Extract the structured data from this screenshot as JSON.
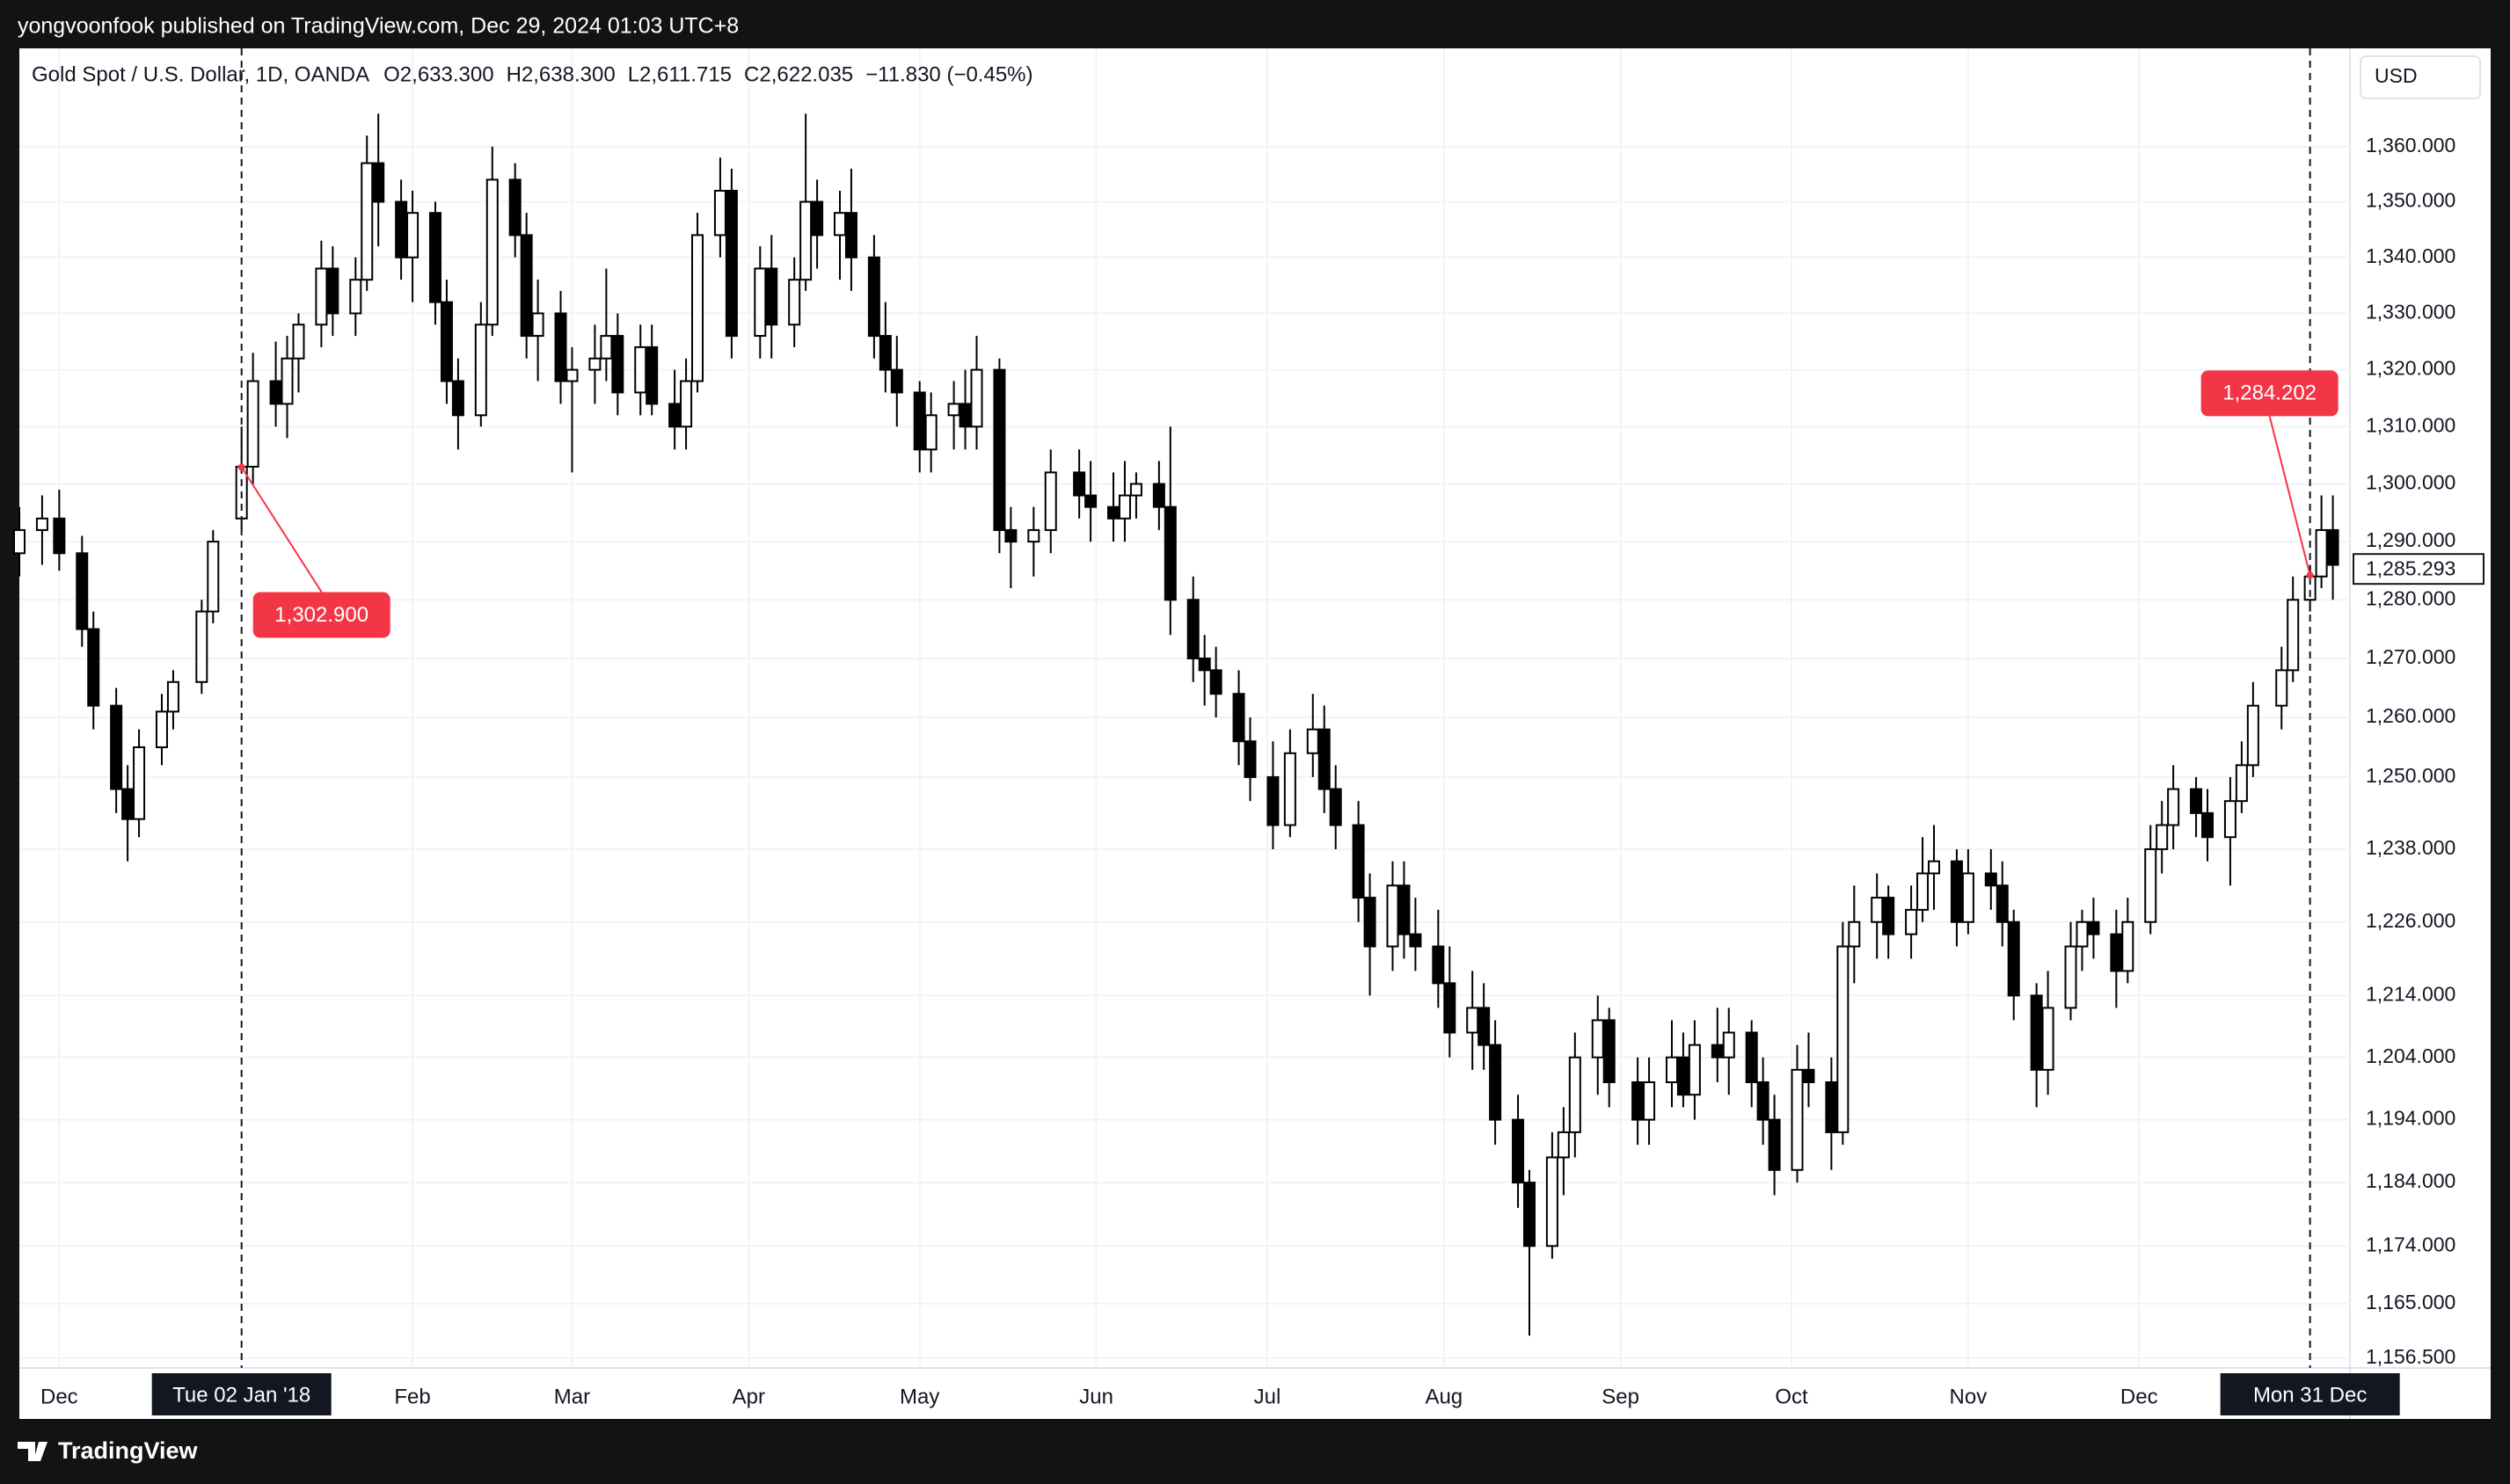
{
  "header": {
    "text": "yongvoonfook published on TradingView.com, Dec 29, 2024 01:03 UTC+8"
  },
  "footer": {
    "brand": "TradingView"
  },
  "chart_data": {
    "type": "candlestick",
    "title": "Gold Spot / U.S. Dollar, 1D, OANDA",
    "legend_values": [
      "O2,633.300",
      "H2,638.300",
      "L2,611.715",
      "C2,622.035",
      "−11.830 (−0.45%)"
    ],
    "currency": "USD",
    "log": true,
    "grid": true,
    "up_color": "#ffffff",
    "down_color": "#000000",
    "wick_color": "#000000",
    "xlim": [
      "2017-11-24",
      "2019-01-07"
    ],
    "ylim": [
      1155,
      1378
    ],
    "yticks": [
      {
        "value": 1360,
        "label": "1,360.000"
      },
      {
        "value": 1350,
        "label": "1,350.000"
      },
      {
        "value": 1340,
        "label": "1,340.000"
      },
      {
        "value": 1330,
        "label": "1,330.000"
      },
      {
        "value": 1320,
        "label": "1,320.000"
      },
      {
        "value": 1310,
        "label": "1,310.000"
      },
      {
        "value": 1300,
        "label": "1,300.000"
      },
      {
        "value": 1290,
        "label": "1,290.000"
      },
      {
        "value": 1280,
        "label": "1,280.000"
      },
      {
        "value": 1270,
        "label": "1,270.000"
      },
      {
        "value": 1260,
        "label": "1,260.000"
      },
      {
        "value": 1250,
        "label": "1,250.000"
      },
      {
        "value": 1238,
        "label": "1,238.000"
      },
      {
        "value": 1226,
        "label": "1,226.000"
      },
      {
        "value": 1214,
        "label": "1,214.000"
      },
      {
        "value": 1204,
        "label": "1,204.000"
      },
      {
        "value": 1194,
        "label": "1,194.000"
      },
      {
        "value": 1184,
        "label": "1,184.000"
      },
      {
        "value": 1174,
        "label": "1,174.000"
      },
      {
        "value": 1165,
        "label": "1,165.000"
      },
      {
        "value": 1156.5,
        "label": "1,156.500"
      }
    ],
    "xticks": [
      {
        "value": "2017-12-01",
        "label": "Dec"
      },
      {
        "value": "2018-02-01",
        "label": "Feb"
      },
      {
        "value": "2018-03-01",
        "label": "Mar"
      },
      {
        "value": "2018-04-01",
        "label": "Apr"
      },
      {
        "value": "2018-05-01",
        "label": "May"
      },
      {
        "value": "2018-06-01",
        "label": "Jun"
      },
      {
        "value": "2018-07-01",
        "label": "Jul"
      },
      {
        "value": "2018-08-01",
        "label": "Aug"
      },
      {
        "value": "2018-09-01",
        "label": "Sep"
      },
      {
        "value": "2018-10-01",
        "label": "Oct"
      },
      {
        "value": "2018-11-01",
        "label": "Nov"
      },
      {
        "value": "2018-12-01",
        "label": "Dec"
      }
    ],
    "crosshairs": [
      {
        "x": "2018-01-02",
        "label": "Tue 02 Jan '18"
      },
      {
        "x": "2018-12-31",
        "label": "Mon 31 Dec"
      }
    ],
    "annotations": [
      {
        "x": "2018-01-02",
        "value": 1302.9,
        "label": "1,302.900",
        "color": "#f23645"
      },
      {
        "x": "2018-12-31",
        "value": 1284.202,
        "label": "1,284.202",
        "color": "#f23645"
      }
    ],
    "last_price": {
      "value": 1285.293,
      "label": "1,285.293"
    },
    "x": [
      "2017-11-24",
      "2017-11-28",
      "2017-12-01",
      "2017-12-05",
      "2017-12-07",
      "2017-12-11",
      "2017-12-13",
      "2017-12-15",
      "2017-12-19",
      "2017-12-21",
      "2017-12-26",
      "2017-12-28",
      "2018-01-02",
      "2018-01-04",
      "2018-01-08",
      "2018-01-10",
      "2018-01-12",
      "2018-01-16",
      "2018-01-18",
      "2018-01-22",
      "2018-01-24",
      "2018-01-26",
      "2018-01-30",
      "2018-02-01",
      "2018-02-05",
      "2018-02-07",
      "2018-02-09",
      "2018-02-13",
      "2018-02-15",
      "2018-02-19",
      "2018-02-21",
      "2018-02-23",
      "2018-02-27",
      "2018-03-01",
      "2018-03-05",
      "2018-03-07",
      "2018-03-09",
      "2018-03-13",
      "2018-03-15",
      "2018-03-19",
      "2018-03-21",
      "2018-03-23",
      "2018-03-27",
      "2018-03-29",
      "2018-04-03",
      "2018-04-05",
      "2018-04-09",
      "2018-04-11",
      "2018-04-13",
      "2018-04-17",
      "2018-04-19",
      "2018-04-23",
      "2018-04-25",
      "2018-04-27",
      "2018-05-01",
      "2018-05-03",
      "2018-05-07",
      "2018-05-09",
      "2018-05-11",
      "2018-05-15",
      "2018-05-17",
      "2018-05-21",
      "2018-05-24",
      "2018-05-29",
      "2018-05-31",
      "2018-06-04",
      "2018-06-06",
      "2018-06-08",
      "2018-06-12",
      "2018-06-14",
      "2018-06-18",
      "2018-06-20",
      "2018-06-22",
      "2018-06-26",
      "2018-06-28",
      "2018-07-02",
      "2018-07-05",
      "2018-07-09",
      "2018-07-11",
      "2018-07-13",
      "2018-07-17",
      "2018-07-19",
      "2018-07-23",
      "2018-07-25",
      "2018-07-27",
      "2018-07-31",
      "2018-08-02",
      "2018-08-06",
      "2018-08-08",
      "2018-08-10",
      "2018-08-14",
      "2018-08-16",
      "2018-08-20",
      "2018-08-22",
      "2018-08-24",
      "2018-08-28",
      "2018-08-30",
      "2018-09-04",
      "2018-09-06",
      "2018-09-10",
      "2018-09-12",
      "2018-09-14",
      "2018-09-18",
      "2018-09-20",
      "2018-09-24",
      "2018-09-26",
      "2018-09-28",
      "2018-10-02",
      "2018-10-04",
      "2018-10-08",
      "2018-10-10",
      "2018-10-12",
      "2018-10-16",
      "2018-10-18",
      "2018-10-22",
      "2018-10-24",
      "2018-10-26",
      "2018-10-30",
      "2018-11-01",
      "2018-11-05",
      "2018-11-07",
      "2018-11-09",
      "2018-11-13",
      "2018-11-15",
      "2018-11-19",
      "2018-11-21",
      "2018-11-23",
      "2018-11-27",
      "2018-11-29",
      "2018-12-03",
      "2018-12-05",
      "2018-12-07",
      "2018-12-11",
      "2018-12-13",
      "2018-12-17",
      "2018-12-19",
      "2018-12-21",
      "2018-12-26",
      "2018-12-28",
      "2018-12-31",
      "2019-01-02",
      "2019-01-04"
    ],
    "open": [
      1288,
      1292,
      1294,
      1288,
      1275,
      1262,
      1248,
      1243,
      1255,
      1261,
      1266,
      1278,
      1294,
      1303,
      1318,
      1314,
      1322,
      1328,
      1338,
      1330,
      1336,
      1357,
      1350,
      1340,
      1348,
      1332,
      1318,
      1312,
      1328,
      1354,
      1344,
      1326,
      1330,
      1318,
      1320,
      1322,
      1326,
      1316,
      1324,
      1314,
      1310,
      1318,
      1344,
      1352,
      1326,
      1338,
      1328,
      1336,
      1350,
      1344,
      1348,
      1340,
      1326,
      1320,
      1316,
      1306,
      1312,
      1314,
      1310,
      1320,
      1292,
      1290,
      1292,
      1302,
      1298,
      1296,
      1294,
      1298,
      1300,
      1296,
      1280,
      1270,
      1268,
      1264,
      1256,
      1250,
      1242,
      1254,
      1258,
      1248,
      1242,
      1230,
      1222,
      1232,
      1224,
      1222,
      1216,
      1208,
      1212,
      1206,
      1194,
      1184,
      1174,
      1188,
      1192,
      1204,
      1210,
      1200,
      1194,
      1200,
      1204,
      1198,
      1206,
      1204,
      1208,
      1200,
      1194,
      1186,
      1202,
      1200,
      1192,
      1222,
      1226,
      1230,
      1224,
      1228,
      1234,
      1236,
      1226,
      1234,
      1232,
      1226,
      1214,
      1202,
      1212,
      1222,
      1226,
      1224,
      1218,
      1226,
      1238,
      1242,
      1248,
      1244,
      1240,
      1246,
      1252,
      1262,
      1268,
      1280,
      1284,
      1292
    ],
    "high": [
      1296,
      1298,
      1299,
      1291,
      1278,
      1265,
      1252,
      1258,
      1264,
      1268,
      1280,
      1292,
      1310,
      1323,
      1325,
      1326,
      1330,
      1343,
      1342,
      1340,
      1362,
      1366,
      1354,
      1352,
      1350,
      1336,
      1322,
      1332,
      1360,
      1357,
      1348,
      1336,
      1334,
      1324,
      1328,
      1338,
      1330,
      1328,
      1328,
      1320,
      1322,
      1348,
      1358,
      1356,
      1342,
      1344,
      1340,
      1366,
      1354,
      1352,
      1356,
      1344,
      1332,
      1326,
      1318,
      1316,
      1318,
      1320,
      1326,
      1322,
      1296,
      1296,
      1306,
      1306,
      1304,
      1302,
      1304,
      1302,
      1304,
      1310,
      1284,
      1274,
      1272,
      1268,
      1260,
      1256,
      1258,
      1264,
      1262,
      1252,
      1246,
      1234,
      1236,
      1236,
      1230,
      1228,
      1222,
      1218,
      1216,
      1210,
      1198,
      1186,
      1192,
      1196,
      1208,
      1214,
      1212,
      1204,
      1204,
      1210,
      1208,
      1210,
      1212,
      1212,
      1210,
      1204,
      1198,
      1206,
      1208,
      1204,
      1226,
      1232,
      1234,
      1232,
      1232,
      1240,
      1242,
      1238,
      1238,
      1238,
      1236,
      1228,
      1216,
      1218,
      1226,
      1228,
      1230,
      1228,
      1230,
      1242,
      1246,
      1252,
      1250,
      1248,
      1250,
      1256,
      1266,
      1272,
      1284,
      1286,
      1298,
      1298
    ],
    "low": [
      1284,
      1286,
      1285,
      1272,
      1258,
      1244,
      1236,
      1240,
      1252,
      1258,
      1264,
      1276,
      1292,
      1300,
      1310,
      1308,
      1316,
      1324,
      1326,
      1326,
      1334,
      1342,
      1336,
      1332,
      1328,
      1314,
      1306,
      1310,
      1326,
      1340,
      1322,
      1318,
      1314,
      1302,
      1314,
      1318,
      1312,
      1312,
      1312,
      1306,
      1306,
      1316,
      1340,
      1322,
      1322,
      1322,
      1324,
      1334,
      1338,
      1336,
      1334,
      1322,
      1316,
      1310,
      1302,
      1302,
      1306,
      1306,
      1306,
      1288,
      1282,
      1284,
      1288,
      1294,
      1290,
      1290,
      1290,
      1294,
      1292,
      1274,
      1266,
      1262,
      1260,
      1252,
      1246,
      1238,
      1240,
      1250,
      1244,
      1238,
      1226,
      1214,
      1218,
      1220,
      1218,
      1212,
      1204,
      1202,
      1202,
      1190,
      1180,
      1160,
      1172,
      1182,
      1188,
      1198,
      1196,
      1190,
      1190,
      1196,
      1196,
      1194,
      1200,
      1198,
      1196,
      1190,
      1182,
      1184,
      1196,
      1186,
      1190,
      1216,
      1220,
      1220,
      1220,
      1226,
      1228,
      1222,
      1224,
      1228,
      1222,
      1210,
      1196,
      1198,
      1210,
      1218,
      1220,
      1212,
      1216,
      1224,
      1234,
      1238,
      1240,
      1236,
      1232,
      1244,
      1250,
      1258,
      1266,
      1278,
      1282,
      1280
    ],
    "close": [
      1292,
      1294,
      1288,
      1275,
      1262,
      1248,
      1243,
      1255,
      1261,
      1266,
      1278,
      1290,
      1303,
      1318,
      1314,
      1322,
      1328,
      1338,
      1330,
      1336,
      1357,
      1350,
      1340,
      1348,
      1332,
      1318,
      1312,
      1328,
      1354,
      1344,
      1326,
      1330,
      1318,
      1320,
      1322,
      1326,
      1316,
      1324,
      1314,
      1310,
      1318,
      1344,
      1352,
      1326,
      1338,
      1328,
      1336,
      1350,
      1344,
      1348,
      1340,
      1326,
      1320,
      1316,
      1306,
      1312,
      1314,
      1310,
      1320,
      1292,
      1290,
      1292,
      1302,
      1298,
      1296,
      1294,
      1298,
      1300,
      1296,
      1280,
      1270,
      1268,
      1264,
      1256,
      1250,
      1242,
      1254,
      1258,
      1248,
      1242,
      1230,
      1222,
      1232,
      1224,
      1222,
      1216,
      1208,
      1212,
      1206,
      1194,
      1184,
      1174,
      1188,
      1192,
      1204,
      1210,
      1200,
      1194,
      1200,
      1204,
      1198,
      1206,
      1204,
      1208,
      1200,
      1194,
      1186,
      1202,
      1200,
      1192,
      1222,
      1226,
      1230,
      1224,
      1228,
      1234,
      1236,
      1226,
      1234,
      1232,
      1226,
      1214,
      1202,
      1212,
      1222,
      1226,
      1224,
      1218,
      1226,
      1238,
      1242,
      1248,
      1244,
      1240,
      1246,
      1252,
      1262,
      1268,
      1280,
      1284,
      1292,
      1286
    ]
  }
}
